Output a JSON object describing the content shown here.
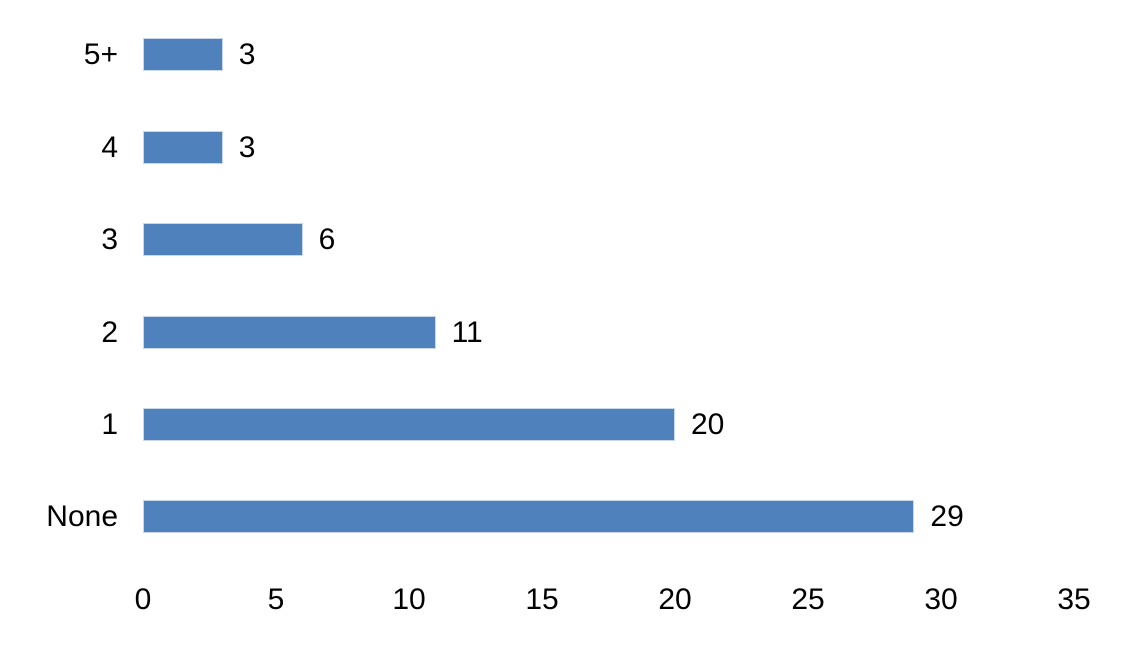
{
  "chart_data": {
    "type": "bar",
    "orientation": "horizontal",
    "title": "",
    "xlabel": "",
    "ylabel": "",
    "categories": [
      "5+",
      "4",
      "3",
      "2",
      "1",
      "None"
    ],
    "values": [
      3,
      3,
      6,
      11,
      20,
      29
    ],
    "data_labels": [
      "3",
      "3",
      "6",
      "11",
      "20",
      "29"
    ],
    "x_ticks": [
      0,
      5,
      10,
      15,
      20,
      25,
      30,
      35
    ],
    "xlim": [
      0,
      35
    ],
    "grid": false,
    "legend": false,
    "bar_color": "#4F81BD",
    "bar_border_color": "#C9D7EC",
    "text_color": "#000000",
    "background_color": "#FFFFFF"
  }
}
